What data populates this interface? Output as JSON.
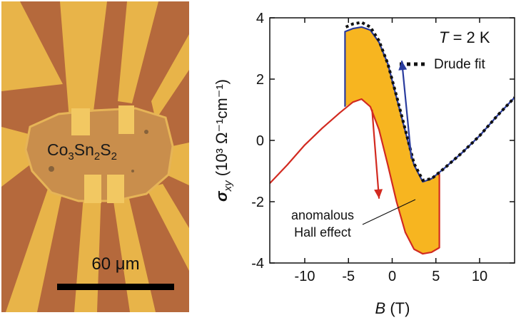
{
  "micrograph": {
    "sample_label": {
      "base1": "Co",
      "sub1": "3",
      "base2": "Sn",
      "sub2": "2",
      "base3": "S",
      "sub3": "2"
    },
    "scale_bar_label": "60 μm",
    "colors": {
      "background": "#b5693c",
      "gold": "#e8b449",
      "gold_light": "#f2c862",
      "sample": "#c98e4c"
    }
  },
  "chart_data": {
    "type": "line",
    "xlabel_var": "B",
    "xlabel_unit": "(T)",
    "ylabel_var": "σ",
    "ylabel_sub": "xy",
    "ylabel_unit": "(10³ Ω⁻¹cm⁻¹)",
    "xlim": [
      -14,
      14
    ],
    "ylim": [
      -4,
      4
    ],
    "x_ticks": [
      -10,
      -5,
      0,
      5,
      10
    ],
    "x_tick_labels": [
      "-10",
      "-5",
      "0",
      "5",
      "10"
    ],
    "y_ticks": [
      -4,
      -2,
      0,
      2,
      4
    ],
    "y_tick_labels": [
      "-4",
      "-2",
      "0",
      "2",
      "4"
    ],
    "temperature_label": {
      "var": "T",
      "value": " = 2 K"
    },
    "legend": [
      {
        "name": "Drude fit",
        "style": "dotted"
      }
    ],
    "annotation": {
      "line1": "anomalous",
      "line2": "Hall effect"
    },
    "series": [
      {
        "name": "blue branch",
        "color": "#2a3c9e",
        "points": [
          [
            -5.4,
            1.1
          ],
          [
            -5.4,
            3.55
          ],
          [
            -4.5,
            3.65
          ],
          [
            -3.5,
            3.7
          ],
          [
            -2.5,
            3.6
          ],
          [
            -1.5,
            3.2
          ],
          [
            -0.5,
            2.5
          ],
          [
            0.5,
            1.4
          ],
          [
            1.5,
            0.3
          ],
          [
            2.5,
            -0.8
          ],
          [
            3.5,
            -1.35
          ],
          [
            4.5,
            -1.25
          ],
          [
            6,
            -0.9
          ],
          [
            8,
            -0.4
          ],
          [
            10,
            0.15
          ],
          [
            12,
            0.8
          ],
          [
            14,
            1.4
          ]
        ]
      },
      {
        "name": "red branch",
        "color": "#d22a20",
        "points": [
          [
            -14,
            -1.4
          ],
          [
            -12,
            -0.8
          ],
          [
            -10,
            -0.15
          ],
          [
            -8,
            0.4
          ],
          [
            -6,
            0.9
          ],
          [
            -4.5,
            1.25
          ],
          [
            -3.5,
            1.35
          ],
          [
            -2.5,
            1.1
          ],
          [
            -1.5,
            0.35
          ],
          [
            -0.5,
            -0.8
          ],
          [
            0.5,
            -2
          ],
          [
            1.5,
            -3
          ],
          [
            2.5,
            -3.55
          ],
          [
            3.5,
            -3.7
          ],
          [
            4.5,
            -3.65
          ],
          [
            5.4,
            -3.5
          ],
          [
            5.4,
            -1.1
          ]
        ]
      },
      {
        "name": "Drude fit",
        "color": "#111111",
        "points": [
          [
            -5.3,
            3.7
          ],
          [
            -4.5,
            3.8
          ],
          [
            -3.5,
            3.85
          ],
          [
            -2.5,
            3.7
          ],
          [
            -1.5,
            3.25
          ],
          [
            -0.5,
            2.5
          ],
          [
            0.5,
            1.45
          ],
          [
            1.5,
            0.35
          ],
          [
            2.5,
            -0.75
          ],
          [
            3.5,
            -1.3
          ],
          [
            4.5,
            -1.25
          ],
          [
            6,
            -0.9
          ],
          [
            8,
            -0.4
          ],
          [
            10,
            0.15
          ],
          [
            12,
            0.8
          ],
          [
            14,
            1.4
          ]
        ]
      }
    ],
    "arrows": [
      {
        "color": "#d22a20",
        "from": [
          -2.3,
          1.0
        ],
        "to": [
          -1.5,
          -1.9
        ]
      },
      {
        "color": "#2a3c9e",
        "from": [
          2.2,
          -0.6
        ],
        "to": [
          1.1,
          2.6
        ]
      }
    ],
    "colors": {
      "fill": "#f7b520",
      "fill_edge": "#e8a517"
    }
  }
}
